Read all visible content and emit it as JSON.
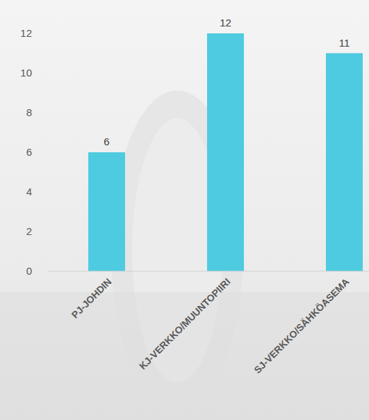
{
  "chart_data": {
    "type": "bar",
    "categories": [
      "PJ-JOHDIN",
      "KJ-VERKKO/MUUNTOPIIRI",
      "SJ-VERKKO/SÄHKÖASEMA"
    ],
    "values": [
      6,
      12,
      11
    ],
    "color": "#4ecbe0",
    "ylim": [
      0,
      12
    ],
    "yticks": [
      0,
      2,
      4,
      6,
      8,
      10,
      12
    ],
    "grid": false,
    "data_labels": true
  }
}
